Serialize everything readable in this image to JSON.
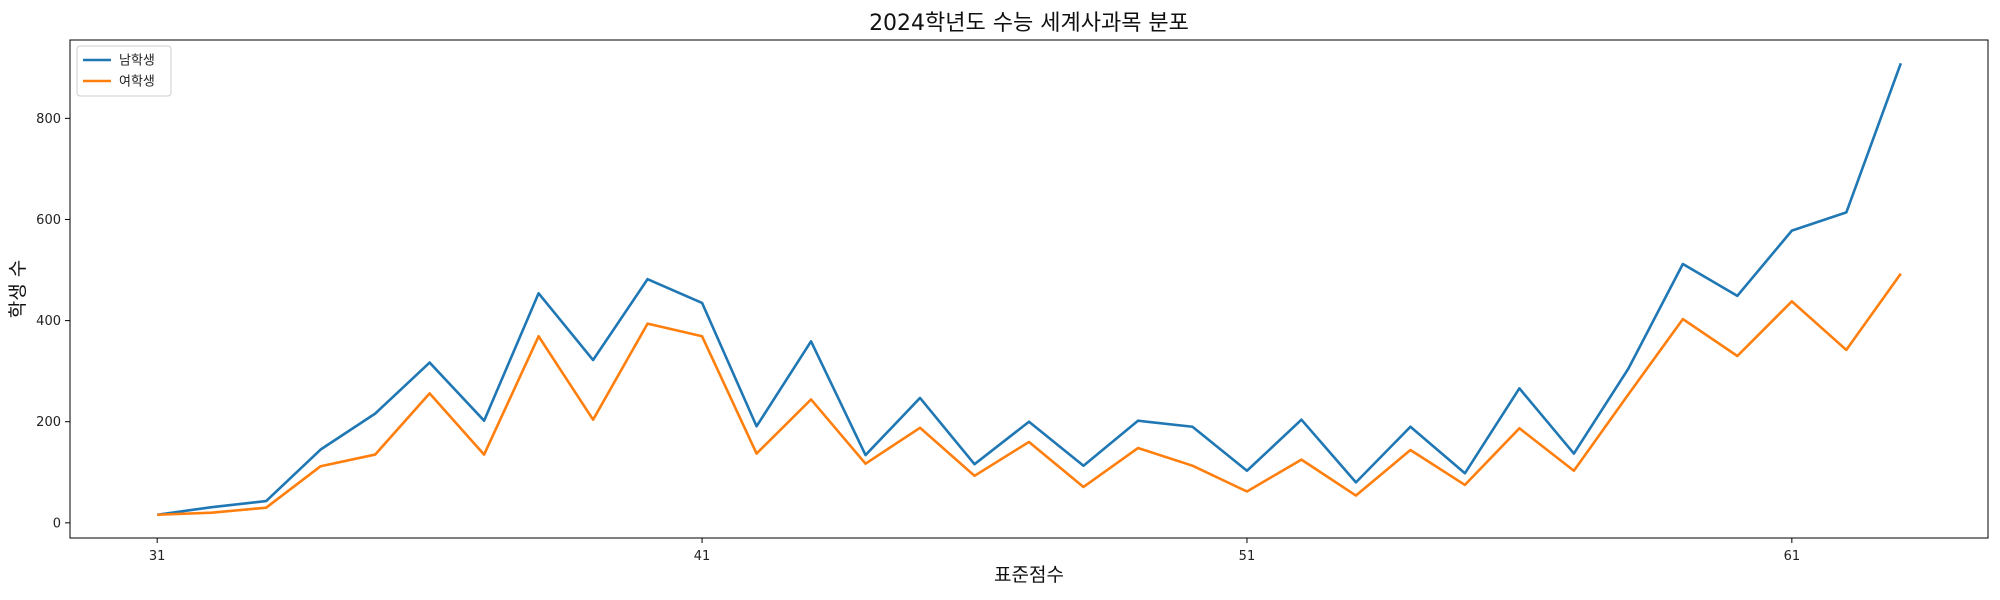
{
  "chart_data": {
    "type": "line",
    "title": "2024학년도 수능 세계사과목 분포",
    "xlabel": "표준점수",
    "ylabel": "학생 수",
    "x": [
      31,
      32,
      33,
      34,
      35,
      36,
      37,
      38,
      39,
      40,
      41,
      42,
      43,
      44,
      45,
      46,
      47,
      48,
      49,
      50,
      51,
      52,
      53,
      54,
      55,
      56,
      57,
      58,
      59,
      60,
      61,
      62,
      63
    ],
    "xticks": [
      31,
      41,
      51,
      61
    ],
    "yticks": [
      0,
      200,
      400,
      600,
      800
    ],
    "xlim": [
      29.4,
      64.6
    ],
    "ylim": [
      -30,
      955
    ],
    "grid": false,
    "legend_position": "top-left",
    "series": [
      {
        "name": "남학생",
        "color": "#1f77b4",
        "values": [
          16,
          31,
          43,
          145,
          216,
          317,
          202,
          454,
          322,
          482,
          435,
          191,
          359,
          134,
          247,
          116,
          200,
          113,
          202,
          190,
          103,
          204,
          80,
          190,
          98,
          266,
          137,
          305,
          512,
          449,
          578,
          614,
          909
        ]
      },
      {
        "name": "여학생",
        "color": "#ff7f0e",
        "values": [
          16,
          20,
          30,
          112,
          135,
          256,
          135,
          369,
          204,
          394,
          369,
          137,
          244,
          117,
          188,
          93,
          160,
          71,
          148,
          113,
          62,
          125,
          54,
          144,
          75,
          187,
          103,
          254,
          403,
          330,
          438,
          342,
          493
        ]
      }
    ]
  }
}
